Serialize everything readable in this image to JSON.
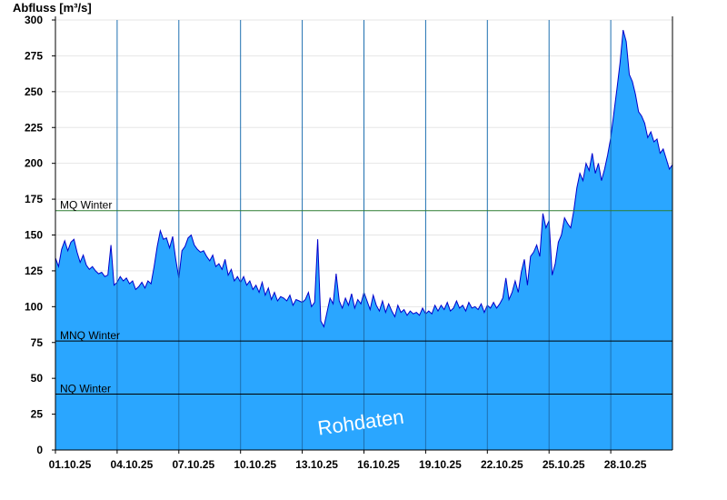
{
  "chart_data": {
    "type": "area",
    "ylabel": "Abfluss [m³/s]",
    "ylim": [
      0,
      300
    ],
    "yticks": [
      0,
      25,
      50,
      75,
      100,
      125,
      150,
      175,
      200,
      225,
      250,
      275,
      300
    ],
    "xlim": [
      0,
      30
    ],
    "xticks": [
      {
        "x": 0,
        "label": "01.10.25"
      },
      {
        "x": 3,
        "label": "04.10.25"
      },
      {
        "x": 6,
        "label": "07.10.25"
      },
      {
        "x": 9,
        "label": "10.10.25"
      },
      {
        "x": 12,
        "label": "13.10.25"
      },
      {
        "x": 15,
        "label": "16.10.25"
      },
      {
        "x": 18,
        "label": "19.10.25"
      },
      {
        "x": 21,
        "label": "22.10.25"
      },
      {
        "x": 24,
        "label": "25.10.25"
      },
      {
        "x": 27,
        "label": "28.10.25"
      }
    ],
    "grid": true,
    "fill_color": "#2aa6ff",
    "line_color": "#0000cc",
    "reference_lines": [
      {
        "name": "MQ Winter",
        "value": 167,
        "color": "#2e7d32"
      },
      {
        "name": "MNQ Winter",
        "value": 76,
        "color": "#000000"
      },
      {
        "name": "NQ Winter",
        "value": 39,
        "color": "#000000"
      }
    ],
    "watermark": "Rohdaten",
    "series": [
      {
        "x": [
          0,
          0.15,
          0.3,
          0.45,
          0.6,
          0.75,
          0.9,
          1.05,
          1.2,
          1.35,
          1.5,
          1.65,
          1.8,
          1.95,
          2.1,
          2.25,
          2.4,
          2.55,
          2.7,
          2.85,
          3.0,
          3.15,
          3.3,
          3.45,
          3.6,
          3.75,
          3.9,
          4.05,
          4.2,
          4.35,
          4.5,
          4.65,
          4.8,
          4.95,
          5.1,
          5.25,
          5.4,
          5.55,
          5.7,
          5.85,
          6.0,
          6.15,
          6.3,
          6.45,
          6.6,
          6.75,
          6.9,
          7.05,
          7.2,
          7.35,
          7.5,
          7.65,
          7.8,
          7.95,
          8.1,
          8.25,
          8.4,
          8.55,
          8.7,
          8.85,
          9.0,
          9.15,
          9.3,
          9.45,
          9.6,
          9.75,
          9.9,
          10.05,
          10.2,
          10.35,
          10.5,
          10.65,
          10.8,
          10.95,
          11.1,
          11.25,
          11.4,
          11.55,
          11.7,
          11.85,
          12.0,
          12.15,
          12.3,
          12.45,
          12.6,
          12.75,
          12.9,
          13.05,
          13.2,
          13.35,
          13.5,
          13.65,
          13.8,
          13.95,
          14.1,
          14.25,
          14.4,
          14.55,
          14.7,
          14.85,
          15.0,
          15.15,
          15.3,
          15.45,
          15.6,
          15.75,
          15.9,
          16.05,
          16.2,
          16.35,
          16.5,
          16.65,
          16.8,
          16.95,
          17.1,
          17.25,
          17.4,
          17.55,
          17.7,
          17.85,
          18.0,
          18.15,
          18.3,
          18.45,
          18.6,
          18.75,
          18.9,
          19.05,
          19.2,
          19.35,
          19.5,
          19.65,
          19.8,
          19.95,
          20.1,
          20.25,
          20.4,
          20.55,
          20.7,
          20.85,
          21.0,
          21.15,
          21.3,
          21.45,
          21.6,
          21.75,
          21.9,
          22.05,
          22.2,
          22.35,
          22.5,
          22.65,
          22.8,
          22.95,
          23.1,
          23.25,
          23.4,
          23.55,
          23.7,
          23.85,
          24.0,
          24.15,
          24.3,
          24.45,
          24.6,
          24.75,
          24.9,
          25.05,
          25.2,
          25.35,
          25.5,
          25.65,
          25.8,
          25.95,
          26.1,
          26.25,
          26.4,
          26.55,
          26.7,
          26.85,
          27.0,
          27.15,
          27.3,
          27.45,
          27.6,
          27.75,
          27.9,
          28.05,
          28.2,
          28.35,
          28.5,
          28.65,
          28.8,
          28.95,
          29.1,
          29.25,
          29.4,
          29.55,
          29.7,
          29.85,
          30.0
        ],
        "y": [
          134,
          128,
          140,
          146,
          139,
          145,
          147,
          138,
          131,
          136,
          129,
          126,
          128,
          125,
          123,
          124,
          121,
          122,
          143,
          115,
          117,
          121,
          118,
          120,
          116,
          118,
          112,
          114,
          117,
          113,
          118,
          116,
          128,
          142,
          153,
          147,
          148,
          141,
          149,
          133,
          120,
          139,
          142,
          148,
          150,
          143,
          140,
          138,
          139,
          135,
          132,
          136,
          128,
          130,
          126,
          133,
          122,
          126,
          118,
          121,
          117,
          121,
          115,
          118,
          112,
          115,
          110,
          117,
          108,
          113,
          105,
          110,
          104,
          107,
          106,
          104,
          108,
          101,
          105,
          104,
          103,
          105,
          110,
          100,
          103,
          147,
          90,
          86,
          96,
          106,
          102,
          123,
          104,
          99,
          106,
          101,
          109,
          99,
          105,
          102,
          110,
          104,
          98,
          108,
          101,
          97,
          104,
          96,
          102,
          97,
          93,
          101,
          96,
          98,
          94,
          97,
          95,
          96,
          94,
          99,
          95,
          97,
          95,
          101,
          97,
          101,
          98,
          103,
          97,
          99,
          104,
          99,
          101,
          97,
          103,
          99,
          100,
          98,
          102,
          96,
          101,
          99,
          103,
          99,
          102,
          106,
          120,
          105,
          110,
          118,
          110,
          124,
          133,
          115,
          135,
          138,
          143,
          135,
          165,
          155,
          160,
          122,
          130,
          145,
          150,
          162,
          158,
          155,
          167,
          183,
          193,
          188,
          200,
          195,
          207,
          193,
          200,
          188,
          196,
          206,
          218,
          235,
          252,
          270,
          293,
          285,
          262,
          257,
          248,
          236,
          233,
          228,
          218,
          222,
          215,
          217,
          207,
          210,
          203,
          196,
          199
        ]
      }
    ]
  }
}
